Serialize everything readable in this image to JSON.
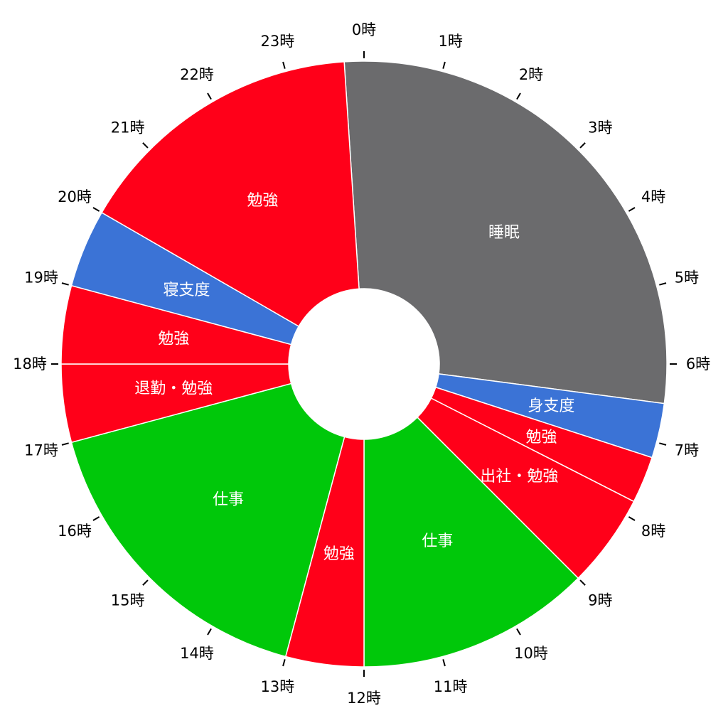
{
  "chart_data": {
    "type": "pie",
    "variant": "donut",
    "hour_labels": [
      "0時",
      "1時",
      "2時",
      "3時",
      "4時",
      "5時",
      "6時",
      "7時",
      "8時",
      "9時",
      "10時",
      "11時",
      "12時",
      "13時",
      "14時",
      "15時",
      "16時",
      "17時",
      "18時",
      "19時",
      "20時",
      "21時",
      "22時",
      "23時"
    ],
    "slices": [
      {
        "label": "睡眠",
        "start": -0.25,
        "end": 6.5,
        "color": "#6b6b6d"
      },
      {
        "label": "身支度",
        "start": 6.5,
        "end": 7.2,
        "color": "#3b73d6"
      },
      {
        "label": "勉強",
        "start": 7.2,
        "end": 7.8,
        "color": "#ff0019"
      },
      {
        "label": "出社・勉強",
        "start": 7.8,
        "end": 9.0,
        "color": "#ff0019"
      },
      {
        "label": "仕事",
        "start": 9.0,
        "end": 12.0,
        "color": "#00c80a"
      },
      {
        "label": "勉強",
        "start": 12.0,
        "end": 13.0,
        "color": "#ff0019"
      },
      {
        "label": "仕事",
        "start": 13.0,
        "end": 17.0,
        "color": "#00c80a"
      },
      {
        "label": "退勤・勉強",
        "start": 17.0,
        "end": 18.0,
        "color": "#ff0019"
      },
      {
        "label": "勉強",
        "start": 18.0,
        "end": 19.0,
        "color": "#ff0019"
      },
      {
        "label": "寝支度",
        "start": 19.0,
        "end": 20.0,
        "color": "#3b73d6"
      },
      {
        "label": "勉強",
        "start": 20.0,
        "end": 23.75,
        "color": "#ff0019"
      }
    ]
  }
}
